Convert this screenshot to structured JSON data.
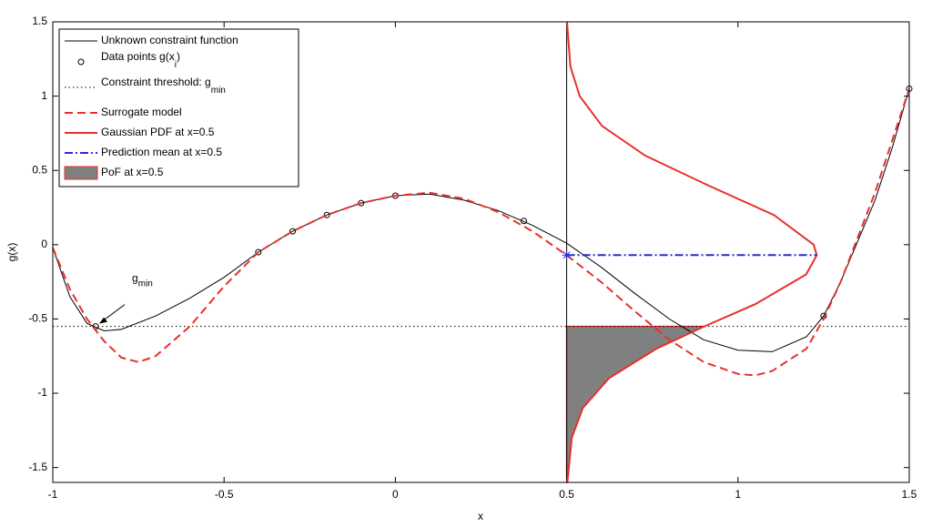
{
  "chart_data": {
    "type": "line",
    "xlabel": "x",
    "ylabel": "g(x)",
    "xlim": [
      -1,
      1.5
    ],
    "ylim": [
      -1.6,
      1.5
    ],
    "xticks": [
      -1,
      -0.5,
      0,
      0.5,
      1,
      1.5
    ],
    "yticks": [
      -1.5,
      -1,
      -0.5,
      0,
      0.5,
      1,
      1.5
    ],
    "legend": "upper left",
    "annotation": {
      "text": "g",
      "sub": "min"
    },
    "series": [
      {
        "name": "Unknown constraint function",
        "color": "#000000",
        "style": "solid",
        "kind": "line",
        "x": [
          -1,
          -0.95,
          -0.9,
          -0.85,
          -0.8,
          -0.7,
          -0.6,
          -0.5,
          -0.4,
          -0.3,
          -0.2,
          -0.1,
          0,
          0.1,
          0.2,
          0.3,
          0.4,
          0.5,
          0.6,
          0.7,
          0.8,
          0.9,
          1.0,
          1.1,
          1.2,
          1.25,
          1.3,
          1.4,
          1.45,
          1.5
        ],
        "values": [
          -0.02,
          -0.35,
          -0.53,
          -0.58,
          -0.57,
          -0.48,
          -0.36,
          -0.22,
          -0.05,
          0.09,
          0.2,
          0.28,
          0.33,
          0.34,
          0.3,
          0.23,
          0.13,
          0.01,
          -0.15,
          -0.33,
          -0.5,
          -0.64,
          -0.71,
          -0.72,
          -0.62,
          -0.48,
          -0.25,
          0.3,
          0.65,
          1.05
        ]
      },
      {
        "name": "Data points g(x",
        "name_sub": "i",
        "name_tail": ")",
        "color": "#000000",
        "style": "none",
        "kind": "marker",
        "x": [
          -0.875,
          -0.4,
          -0.3,
          -0.2,
          -0.1,
          0,
          0.375,
          1.25,
          1.5
        ],
        "values": [
          -0.55,
          -0.05,
          0.09,
          0.2,
          0.28,
          0.33,
          0.16,
          -0.48,
          1.05
        ]
      },
      {
        "name": "Constraint threshold: g",
        "name_sub": "min",
        "color": "#000000",
        "style": "dotted",
        "kind": "hline",
        "values": [
          -0.55
        ]
      },
      {
        "name": "Surrogate model",
        "color": "#e8312a",
        "style": "dashed",
        "kind": "line",
        "x": [
          -1,
          -0.95,
          -0.9,
          -0.85,
          -0.8,
          -0.75,
          -0.7,
          -0.6,
          -0.5,
          -0.4,
          -0.3,
          -0.2,
          -0.1,
          0,
          0.1,
          0.2,
          0.3,
          0.4,
          0.5,
          0.6,
          0.7,
          0.8,
          0.9,
          1.0,
          1.05,
          1.1,
          1.2,
          1.25,
          1.3,
          1.4,
          1.5
        ],
        "values": [
          -0.02,
          -0.3,
          -0.5,
          -0.65,
          -0.76,
          -0.79,
          -0.75,
          -0.55,
          -0.28,
          -0.05,
          0.09,
          0.2,
          0.28,
          0.33,
          0.35,
          0.31,
          0.22,
          0.09,
          -0.07,
          -0.25,
          -0.45,
          -0.64,
          -0.79,
          -0.87,
          -0.88,
          -0.85,
          -0.7,
          -0.5,
          -0.25,
          0.35,
          1.05
        ]
      },
      {
        "name": "Gaussian PDF at x=0.5",
        "color": "#e8312a",
        "style": "solid",
        "kind": "line",
        "x": [
          0.501,
          0.511,
          0.538,
          0.603,
          0.729,
          0.912,
          1.105,
          1.221,
          1.23,
          1.199,
          1.051,
          0.902,
          0.762,
          0.623,
          0.547,
          0.515,
          0.502
        ],
        "values": [
          1.5,
          1.2,
          1.0,
          0.8,
          0.6,
          0.4,
          0.2,
          0,
          -0.07,
          -0.2,
          -0.4,
          -0.55,
          -0.7,
          -0.9,
          -1.1,
          -1.3,
          -1.6
        ]
      },
      {
        "name": "Prediction mean at x=0.5",
        "color": "#2b2bd6",
        "style": "dashdot",
        "kind": "line",
        "marker": "star",
        "x": [
          0.5,
          1.23
        ],
        "values": [
          -0.07,
          -0.07
        ]
      },
      {
        "name": "PoF at x=0.5",
        "color": "#808080",
        "edge": "#e8312a",
        "style": "solid",
        "kind": "area",
        "x": [
          0.902,
          0.762,
          0.623,
          0.547,
          0.515,
          0.502
        ],
        "values": [
          -0.55,
          -0.7,
          -0.9,
          -1.1,
          -1.3,
          -1.6
        ]
      }
    ]
  }
}
